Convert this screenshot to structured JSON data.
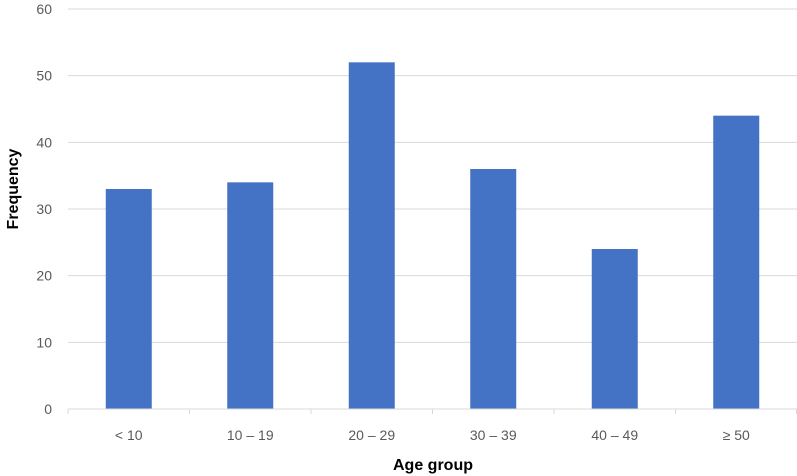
{
  "chart_data": {
    "type": "bar",
    "categories": [
      "< 10",
      "10 – 19",
      "20 – 29",
      "30 – 39",
      "40 – 49",
      "≥ 50"
    ],
    "values": [
      33,
      34,
      52,
      36,
      24,
      44
    ],
    "title": "",
    "xlabel": "Age group",
    "ylabel": "Frequency",
    "ylim": [
      0,
      60
    ],
    "yticks": [
      0,
      10,
      20,
      30,
      40,
      50,
      60
    ],
    "grid": true,
    "legend": "none",
    "bar_color": "#4472C4",
    "grid_color": "#D9D9D9"
  }
}
